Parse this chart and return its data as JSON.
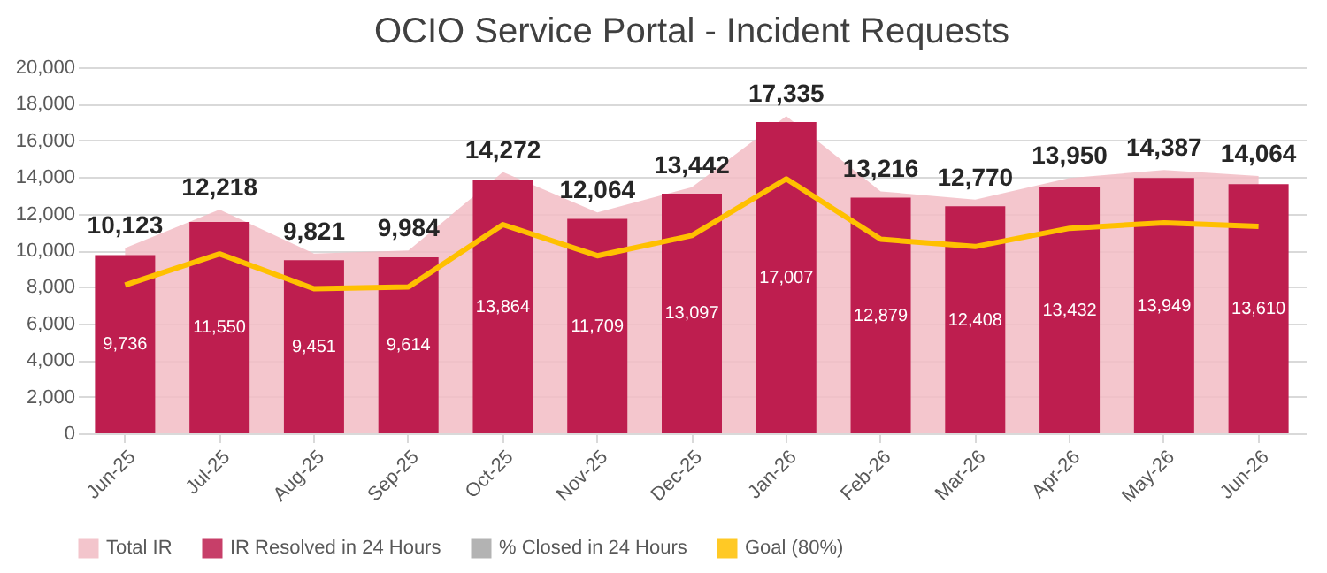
{
  "chart_data": {
    "type": "bar",
    "title": "OCIO Service Portal - Incident Requests",
    "categories": [
      "Jun-25",
      "Jul-25",
      "Aug-25",
      "Sep-25",
      "Oct-25",
      "Nov-25",
      "Dec-25",
      "Jan-26",
      "Feb-26",
      "Mar-26",
      "Apr-26",
      "May-26",
      "Jun-26"
    ],
    "series": [
      {
        "name": "Total IR",
        "type": "area",
        "color": "#f2bcc4",
        "values": [
          10123,
          12218,
          9821,
          9984,
          14272,
          12064,
          13442,
          17335,
          13216,
          12770,
          13950,
          14387,
          14064
        ],
        "value_labels": [
          "10,123",
          "12,218",
          "9,821",
          "9,984",
          "14,272",
          "12,064",
          "13,442",
          "17,335",
          "13,216",
          "12,770",
          "13,950",
          "14,387",
          "14,064"
        ]
      },
      {
        "name": "IR Resolved in 24 Hours",
        "color": "#be1e4f",
        "values": [
          9736,
          11550,
          9451,
          9614,
          13864,
          11709,
          13097,
          17007,
          12879,
          12408,
          13432,
          13949,
          13610
        ],
        "value_labels": [
          "9,736",
          "11,550",
          "9,451",
          "9,614",
          "13,864",
          "11,709",
          "13,097",
          "17,007",
          "12,879",
          "12,408",
          "13,432",
          "13,949",
          "13,610"
        ]
      },
      {
        "name": "% Closed in 24 Hours",
        "color": "#a6a6a6",
        "values": [
          null,
          null,
          null,
          null,
          null,
          null,
          null,
          null,
          null,
          null,
          null,
          null,
          null
        ]
      },
      {
        "name": "Goal (80%)",
        "type": "line",
        "color": "#ffc000",
        "values": [
          8100,
          9800,
          7900,
          8000,
          11400,
          9700,
          10800,
          13900,
          10600,
          10200,
          11200,
          11500,
          11300
        ]
      }
    ],
    "ylim": [
      0,
      20000
    ],
    "yticks": [
      0,
      {
        "value": 2000,
        "label": "2,000"
      },
      {
        "value": 4000,
        "label": "4,000"
      },
      {
        "value": 6000,
        "label": "6,000"
      },
      {
        "value": 8000,
        "label": "8,000"
      },
      {
        "value": 10000,
        "label": "10,000"
      },
      {
        "value": 12000,
        "label": "12,000"
      },
      {
        "value": 14000,
        "label": "14,000"
      },
      {
        "value": 16000,
        "label": "16,000"
      },
      {
        "value": 18000,
        "label": "18,000"
      },
      {
        "value": 20000,
        "label": "20,000"
      }
    ],
    "grid": "y",
    "legend": "bottom"
  }
}
